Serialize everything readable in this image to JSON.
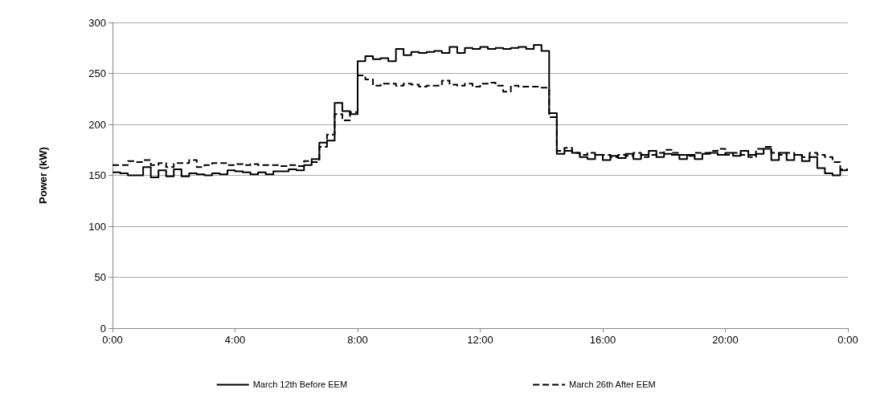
{
  "chart_data": {
    "type": "step",
    "ylabel": "Power (kW)",
    "x": [
      0,
      0.25,
      0.5,
      0.75,
      1,
      1.25,
      1.5,
      1.75,
      2,
      2.25,
      2.5,
      2.75,
      3,
      3.25,
      3.5,
      3.75,
      4,
      4.25,
      4.5,
      4.75,
      5,
      5.25,
      5.5,
      5.75,
      6,
      6.25,
      6.5,
      6.75,
      7,
      7.25,
      7.5,
      7.75,
      8,
      8.25,
      8.5,
      8.75,
      9,
      9.25,
      9.5,
      9.75,
      10,
      10.25,
      10.5,
      10.75,
      11,
      11.25,
      11.5,
      11.75,
      12,
      12.25,
      12.5,
      12.75,
      13,
      13.25,
      13.5,
      13.75,
      14,
      14.25,
      14.5,
      14.75,
      15,
      15.25,
      15.5,
      15.75,
      16,
      16.25,
      16.5,
      16.75,
      17,
      17.25,
      17.5,
      17.75,
      18,
      18.25,
      18.5,
      18.75,
      19,
      19.25,
      19.5,
      19.75,
      20,
      20.25,
      20.5,
      20.75,
      21,
      21.25,
      21.5,
      21.75,
      22,
      22.25,
      22.5,
      22.75,
      23,
      23.25,
      23.5,
      23.75,
      24
    ],
    "series": [
      {
        "name": "March 12th Before EEM",
        "color": "#000000",
        "line_style": "solid",
        "values": [
          153,
          152,
          150,
          150,
          158,
          148,
          155,
          149,
          156,
          149,
          152,
          151,
          150,
          152,
          151,
          155,
          154,
          153,
          151,
          153,
          151,
          154,
          154,
          156,
          155,
          160,
          166,
          182,
          184,
          221,
          213,
          210,
          262,
          267,
          264,
          265,
          262,
          274,
          268,
          271,
          270,
          271,
          272,
          270,
          276,
          270,
          275,
          274,
          276,
          274,
          275,
          274,
          275,
          276,
          274,
          278,
          272,
          211,
          171,
          174,
          172,
          168,
          166,
          170,
          165,
          169,
          167,
          171,
          166,
          170,
          174,
          168,
          171,
          170,
          166,
          170,
          166,
          171,
          172,
          170,
          172,
          169,
          174,
          170,
          171,
          176,
          165,
          172,
          165,
          170,
          164,
          168,
          157,
          152,
          150,
          155,
          155
        ]
      },
      {
        "name": "March 26th After EEM",
        "color": "#000000",
        "line_style": "dashed",
        "values": [
          160,
          160,
          164,
          163,
          165,
          160,
          162,
          158,
          162,
          162,
          165,
          158,
          160,
          162,
          162,
          160,
          161,
          160,
          161,
          160,
          160,
          160,
          159,
          160,
          159,
          164,
          163,
          178,
          190,
          210,
          204,
          212,
          248,
          244,
          238,
          240,
          240,
          238,
          240,
          239,
          237,
          238,
          238,
          243,
          239,
          238,
          240,
          237,
          240,
          241,
          238,
          232,
          238,
          237,
          237,
          237,
          236,
          207,
          174,
          177,
          172,
          170,
          172,
          170,
          170,
          168,
          170,
          169,
          172,
          168,
          170,
          172,
          175,
          172,
          170,
          169,
          172,
          172,
          174,
          176,
          170,
          172,
          170,
          168,
          176,
          178,
          172,
          170,
          172,
          170,
          168,
          172,
          170,
          168,
          163,
          156,
          156
        ]
      }
    ],
    "xlim": [
      0,
      24
    ],
    "xticks": [
      {
        "value": 0,
        "label": "0:00"
      },
      {
        "value": 4,
        "label": "4:00"
      },
      {
        "value": 8,
        "label": "8:00"
      },
      {
        "value": 12,
        "label": "12:00"
      },
      {
        "value": 16,
        "label": "16:00"
      },
      {
        "value": 20,
        "label": "20:00"
      },
      {
        "value": 24,
        "label": "0:00"
      }
    ],
    "ylim": [
      0,
      300
    ],
    "yticks": [
      0,
      50,
      100,
      150,
      200,
      250,
      300
    ],
    "grid": "y",
    "legend": "bottom",
    "marker": "none"
  }
}
